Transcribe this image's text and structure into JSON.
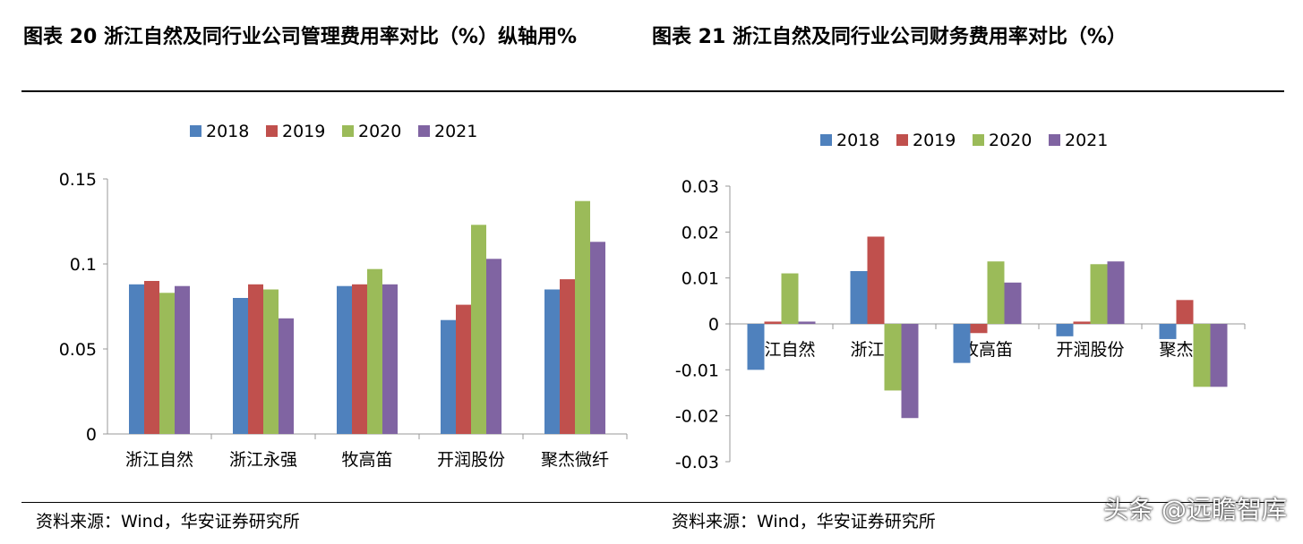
{
  "header": {
    "left_title": "图表 20 浙江自然及同行业公司管理费用率对比（%）纵轴用%",
    "right_title": "图表 21 浙江自然及同行业公司财务费用率对比（%）"
  },
  "footer": {
    "left_source": "资料来源：Wind，华安证券研究所",
    "right_source": "资料来源：Wind，华安证券研究所",
    "watermark": "头条 @远瞻智库"
  },
  "chart_data": [
    {
      "type": "bar",
      "categories": [
        "浙江自然",
        "浙江永强",
        "牧高笛",
        "开润股份",
        "聚杰微纤"
      ],
      "yticks": [
        "0",
        "0.05",
        "0.1",
        "0.15"
      ],
      "ylim": [
        0,
        0.15
      ],
      "legend": "top",
      "series": [
        {
          "name": "2018",
          "color": "#4F81BD",
          "values": [
            0.088,
            0.08,
            0.087,
            0.067,
            0.085
          ]
        },
        {
          "name": "2019",
          "color": "#C0504D",
          "values": [
            0.09,
            0.088,
            0.088,
            0.076,
            0.091
          ]
        },
        {
          "name": "2020",
          "color": "#9BBB59",
          "values": [
            0.083,
            0.085,
            0.097,
            0.123,
            0.137
          ]
        },
        {
          "name": "2021",
          "color": "#8064A2",
          "values": [
            0.087,
            0.068,
            0.088,
            0.103,
            0.113
          ]
        }
      ]
    },
    {
      "type": "bar",
      "categories": [
        "浙江自然",
        "浙江永强",
        "牧高笛",
        "开润股份",
        "聚杰微纤"
      ],
      "yticks": [
        "-0.03",
        "-0.02",
        "-0.01",
        "0",
        "0.01",
        "0.02",
        "0.03"
      ],
      "ylim": [
        -0.03,
        0.03
      ],
      "legend": "top",
      "series": [
        {
          "name": "2018",
          "color": "#4F81BD",
          "values": [
            -0.01,
            0.0115,
            -0.0085,
            -0.0027,
            -0.0033
          ]
        },
        {
          "name": "2019",
          "color": "#C0504D",
          "values": [
            0.0005,
            0.019,
            -0.002,
            0.0005,
            0.0052
          ]
        },
        {
          "name": "2020",
          "color": "#9BBB59",
          "values": [
            0.011,
            -0.0145,
            0.0136,
            0.013,
            -0.0137
          ]
        },
        {
          "name": "2021",
          "color": "#8064A2",
          "values": [
            0.0005,
            -0.0205,
            0.009,
            0.0136,
            -0.0137
          ]
        }
      ]
    }
  ]
}
